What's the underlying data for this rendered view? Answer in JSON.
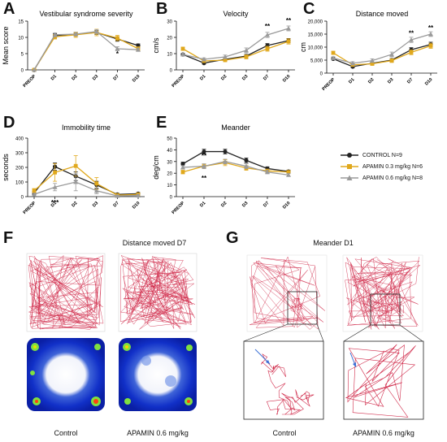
{
  "colors": {
    "control": "#222222",
    "apamin03": "#e0a81c",
    "apamin06": "#9a9a9a",
    "trace": "#d02a4a",
    "arrow": "#3b6fd6"
  },
  "x_ticks": [
    "PREOP",
    "D1",
    "D2",
    "D3",
    "D7",
    "D10"
  ],
  "legend": {
    "control": "CONTROL N=9",
    "apamin03": "APAMIN 0.3 mg/kg N=6",
    "apamin06": "APAMIN 0.6 mg/kg N=8"
  },
  "letters": [
    "A",
    "B",
    "C",
    "D",
    "E",
    "F",
    "G"
  ],
  "chart_data": [
    {
      "type": "line",
      "title": "Vestibular syndrome severity",
      "ylabel": "Mean score",
      "ylim": [
        0,
        15
      ],
      "yticks": [
        "0",
        "5",
        "10",
        "15"
      ],
      "categories": [
        "PREOP",
        "D1",
        "D2",
        "D3",
        "D7",
        "D10"
      ],
      "series": [
        {
          "key": "control",
          "values": [
            0,
            10.5,
            11,
            11.5,
            9.5,
            7.5
          ],
          "err": [
            0,
            0.6,
            0.5,
            0.6,
            0.7,
            0.5
          ]
        },
        {
          "key": "apamin03",
          "values": [
            0,
            10.2,
            10.8,
            11.5,
            9.8,
            6.5
          ],
          "err": [
            0,
            0.7,
            0.8,
            1.0,
            0.8,
            0.6
          ]
        },
        {
          "key": "apamin06",
          "values": [
            0,
            10.8,
            11,
            11.8,
            6.5,
            6.2
          ],
          "err": [
            0,
            0.6,
            0.5,
            0.6,
            0.6,
            0.5
          ]
        }
      ],
      "annotations": [
        {
          "text": "*",
          "x": 4,
          "y": 4.3
        }
      ]
    },
    {
      "type": "line",
      "title": "Velocity",
      "ylabel": "cm/s",
      "ylim": [
        0,
        30
      ],
      "yticks": [
        "0",
        "10",
        "20",
        "30"
      ],
      "categories": [
        "PREOP",
        "D1",
        "D2",
        "D3",
        "D7",
        "D10"
      ],
      "series": [
        {
          "key": "control",
          "values": [
            9.5,
            4.2,
            6.5,
            8.5,
            15,
            18
          ],
          "err": [
            0.7,
            0.6,
            0.8,
            1.0,
            1.2,
            1.3
          ]
        },
        {
          "key": "apamin03",
          "values": [
            13,
            5.5,
            6,
            8,
            13,
            17.5
          ],
          "err": [
            1.0,
            0.8,
            0.9,
            1.2,
            1.5,
            1.6
          ]
        },
        {
          "key": "apamin06",
          "values": [
            9.5,
            6.5,
            8,
            12,
            21.5,
            25.5
          ],
          "err": [
            0.8,
            0.9,
            1.1,
            1.5,
            1.6,
            1.5
          ]
        }
      ],
      "annotations": [
        {
          "text": "**",
          "x": 4,
          "y": 25.5
        },
        {
          "text": "**",
          "x": 5,
          "y": 29
        }
      ]
    },
    {
      "type": "line",
      "title": "Distance moved",
      "ylabel": "cm",
      "ylim": [
        0,
        20000
      ],
      "yticks": [
        "0",
        "5,000",
        "10,000",
        "15,000",
        "20,000"
      ],
      "categories": [
        "PREOP",
        "D1",
        "D2",
        "D3",
        "D7",
        "D10"
      ],
      "series": [
        {
          "key": "control",
          "values": [
            5500,
            2500,
            3800,
            5000,
            9000,
            11000
          ],
          "err": [
            400,
            400,
            500,
            600,
            800,
            900
          ]
        },
        {
          "key": "apamin03",
          "values": [
            7800,
            3200,
            3600,
            4800,
            8000,
            10500
          ],
          "err": [
            600,
            500,
            600,
            700,
            900,
            1000
          ]
        },
        {
          "key": "apamin06",
          "values": [
            5800,
            3800,
            4800,
            7200,
            12800,
            15000
          ],
          "err": [
            500,
            600,
            700,
            900,
            1000,
            900
          ]
        }
      ],
      "annotations": [
        {
          "text": "**",
          "x": 4,
          "y": 14500
        },
        {
          "text": "**",
          "x": 5,
          "y": 16500
        }
      ]
    },
    {
      "type": "line",
      "title": "Immobility time",
      "ylabel": "seconds",
      "ylim": [
        0,
        400
      ],
      "yticks": [
        "0",
        "100",
        "200",
        "300",
        "400"
      ],
      "categories": [
        "PREOP",
        "D1",
        "D2",
        "D3",
        "D7",
        "D10"
      ],
      "series": [
        {
          "key": "control",
          "values": [
            25,
            205,
            140,
            80,
            15,
            20
          ],
          "err": [
            10,
            25,
            30,
            25,
            8,
            8
          ]
        },
        {
          "key": "apamin03",
          "values": [
            40,
            165,
            210,
            90,
            10,
            15
          ],
          "err": [
            15,
            60,
            70,
            40,
            6,
            8
          ]
        },
        {
          "key": "apamin06",
          "values": [
            15,
            65,
            100,
            40,
            5,
            8
          ],
          "err": [
            8,
            25,
            60,
            20,
            4,
            5
          ]
        }
      ],
      "annotations": [
        {
          "text": "***",
          "x": 1,
          "y": -55
        }
      ]
    },
    {
      "type": "line",
      "title": "Meander",
      "ylabel": "deg/cm",
      "ylim": [
        0,
        50
      ],
      "yticks": [
        "0",
        "10",
        "20",
        "30",
        "40",
        "50"
      ],
      "categories": [
        "PREOP",
        "D1",
        "D2",
        "D3",
        "D7",
        "D10"
      ],
      "series": [
        {
          "key": "control",
          "values": [
            28,
            38.5,
            38.5,
            31,
            24,
            21.5
          ],
          "err": [
            1.5,
            2,
            2,
            2,
            1.5,
            1.2
          ]
        },
        {
          "key": "apamin03",
          "values": [
            21,
            26,
            29,
            24.5,
            22,
            21
          ],
          "err": [
            1.5,
            2,
            2.5,
            2,
            1.5,
            1.2
          ]
        },
        {
          "key": "apamin06",
          "values": [
            25,
            26,
            30,
            26,
            21,
            18.5
          ],
          "err": [
            1.5,
            2,
            2,
            2,
            1.5,
            1.2
          ]
        }
      ],
      "annotations": [
        {
          "text": "**",
          "x": 1,
          "y": 33
        },
        {
          "text": "**",
          "x": 1,
          "y": 14
        }
      ]
    }
  ],
  "panel_f": {
    "title": "Distance moved D7",
    "captions": [
      "Control",
      "APAMIN 0.6 mg/kg"
    ]
  },
  "panel_g": {
    "title": "Meander D1",
    "captions": [
      "Control",
      "APAMIN 0.6 mg/kg"
    ]
  }
}
